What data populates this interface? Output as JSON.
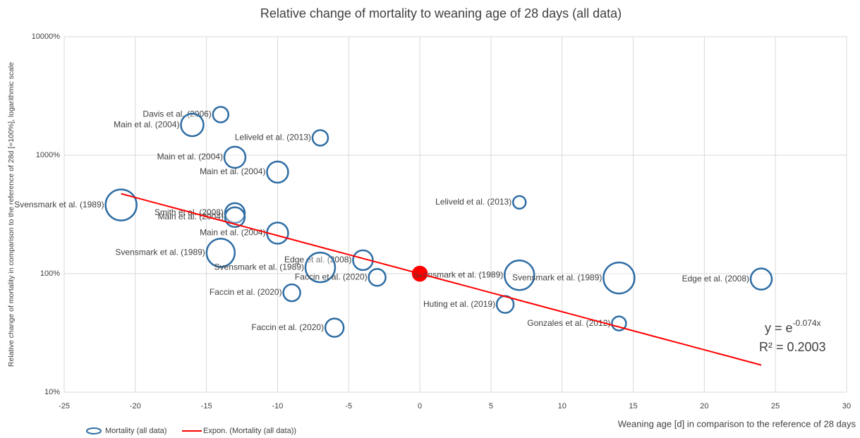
{
  "chart_data": {
    "type": "bubble",
    "title": "Relative change of mortality to weaning age of 28 days (all data)",
    "x_label": "Weaning age [d] in comparison to the reference of 28 days",
    "y_label": "Relative change of mortality in comparison to the reference of 28d [=100%], logarithmic scale",
    "xlim": [
      -25,
      30
    ],
    "xticks": [
      -25,
      -20,
      -15,
      -10,
      -5,
      0,
      5,
      10,
      15,
      20,
      25,
      30
    ],
    "ylim": [
      10,
      10000
    ],
    "yticks": [
      {
        "value": 10,
        "label": "10%"
      },
      {
        "value": 100,
        "label": "100%"
      },
      {
        "value": 1000,
        "label": "1000%"
      },
      {
        "value": 10000,
        "label": "10000%"
      }
    ],
    "y_log": true,
    "grid": true,
    "legend": "bottom-left",
    "series": [
      {
        "name": "Mortality (all data)",
        "color": "#2e6da4",
        "highlight": {
          "index": 14,
          "color": "#ff0000"
        },
        "x": [
          -14,
          -16,
          -7,
          -13,
          -10,
          7,
          -21,
          -13,
          -13,
          -10,
          -14,
          -4,
          -7,
          -3,
          0,
          7,
          14,
          24,
          -9,
          6,
          14,
          -6
        ],
        "y": [
          2200,
          1800,
          1400,
          960,
          720,
          400,
          380,
          325,
          300,
          220,
          150,
          130,
          113,
          93,
          100,
          97,
          92,
          90,
          69,
          55,
          38,
          35
        ],
        "sizes": [
          11,
          16,
          11,
          15,
          15,
          9,
          22,
          14,
          14,
          15,
          20,
          14,
          21,
          12,
          10,
          21,
          22,
          15,
          12,
          12,
          10,
          13
        ],
        "labels": [
          "Davis et al. (2006)",
          "Main et al. (2004)",
          "Leliveld et al. (2013)",
          "Main et al. (2004)",
          "Main et al. (2004)",
          "Leliveld et al. (2013)",
          "Svensmark et al. (1989)",
          "Smith et al. (2008)",
          "Main et al. (2004)",
          "Main et al. (2004)",
          "Svensmark et al. (1989)",
          "Edge et al. (2008)",
          "Svensmark et al. (1989)",
          "Faccin et al. (2020)",
          null,
          "Svensmark et al. (1989)",
          "Svensmark et al. (1989)",
          "Edge et al. (2008)",
          "Faccin et al. (2020)",
          "Huting et al. (2019)",
          "Gonzales et al. (2012)",
          "Faccin et al. (2020)"
        ]
      }
    ],
    "trendline": {
      "name": "Expon. (Mortality (all data))",
      "color": "#ff0000",
      "coefficient": -0.074,
      "x_range": [
        -21,
        24
      ],
      "equation": {
        "base": "y = e",
        "exponent": "-0.074x"
      },
      "r2_label": "R² = 0.2003"
    }
  }
}
